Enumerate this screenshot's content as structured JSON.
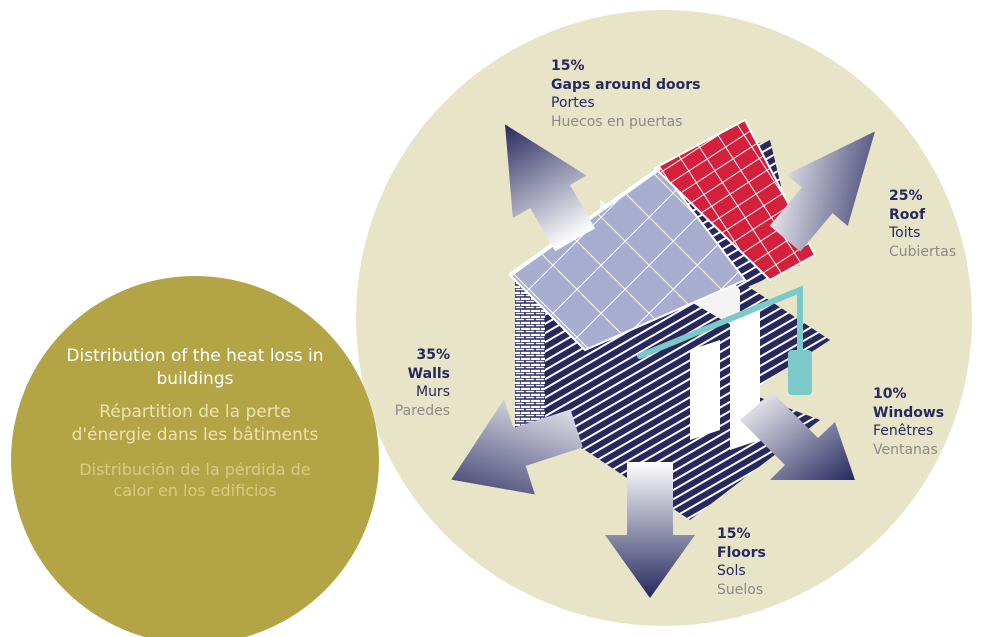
{
  "colors": {
    "big_circle": "#e8e4c8",
    "caption_circle": "#b3a546",
    "navy": "#26285e",
    "roof_tiles": "#d41f3d",
    "roof_slate": "#a9aed0",
    "pipe": "#7cc9c9",
    "gray_text": "#8a8a8a"
  },
  "caption": {
    "en": "Distribution of the heat loss in buildings",
    "fr": "Répartition de la perte d'énergie dans les bâtiments",
    "es": "Distribución de la pérdida de calor en los edificios"
  },
  "labels": {
    "doors": {
      "pct": "15%",
      "en": "Gaps around doors",
      "fr": "Portes",
      "es": "Huecos en puertas"
    },
    "roof": {
      "pct": "25%",
      "en": "Roof",
      "fr": "Toits",
      "es": "Cubiertas"
    },
    "walls": {
      "pct": "35%",
      "en": "Walls",
      "fr": "Murs",
      "es": "Paredes"
    },
    "windows": {
      "pct": "10%",
      "en": "Windows",
      "fr": "Fenêtres",
      "es": "Ventanas"
    },
    "floors": {
      "pct": "15%",
      "en": "Floors",
      "fr": "Sols",
      "es": "Suelos"
    }
  },
  "icons": [
    "house-illustration",
    "heat-arrow"
  ]
}
